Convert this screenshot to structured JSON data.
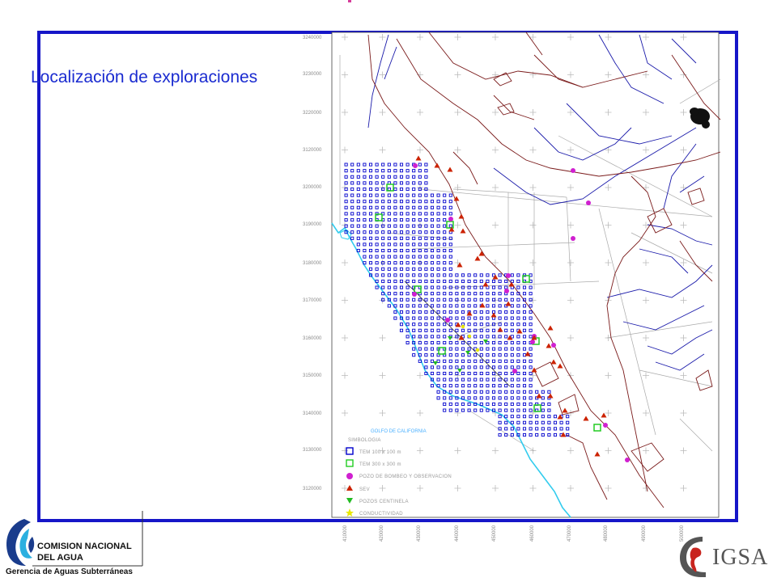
{
  "slide": {
    "title": "Localización de exploraciones"
  },
  "map": {
    "y_labels": [
      "3240000",
      "3230000",
      "3220000",
      "3120000",
      "3200000",
      "3190000",
      "3180000",
      "3170000",
      "3160000",
      "3150000",
      "3140000",
      "3130000",
      "3120000"
    ],
    "x_labels": [
      "410000",
      "420000",
      "430000",
      "440000",
      "450000",
      "460000",
      "470000",
      "480000",
      "490000",
      "500000"
    ],
    "sea_label": "GOLFO DE CALIFORNIA",
    "legend": {
      "title": "SIMBOLOGIA",
      "items": [
        {
          "label": "TEM 100 x 100 m",
          "symbol": "blue-square-icon",
          "color": "#0000cc"
        },
        {
          "label": "TEM 300 x 300 m",
          "symbol": "green-square-icon",
          "color": "#22cc22"
        },
        {
          "label": "POZO DE BOMBEO Y OBSERVACION",
          "symbol": "magenta-circle-icon",
          "color": "#d020d0"
        },
        {
          "label": "SEV",
          "symbol": "red-triangle-icon",
          "color": "#cc2200"
        },
        {
          "label": "POZOS CENTINELA",
          "symbol": "green-down-triangle-icon",
          "color": "#22bb22"
        },
        {
          "label": "CONDUCTIVIDAD",
          "symbol": "yellow-star-icon",
          "color": "#e8e800"
        }
      ]
    },
    "colors": {
      "frame": "#1616c8",
      "coast": "#33ccee",
      "rivers": "#1a1aaa",
      "contours": "#7a1a1a",
      "grid": "#cccccc"
    }
  },
  "logos": {
    "conagua_line1": "COMISION NACIONAL",
    "conagua_line2": "DEL  AGUA",
    "department": "Gerencia de Aguas Subterráneas",
    "igsa": "IGSA"
  }
}
